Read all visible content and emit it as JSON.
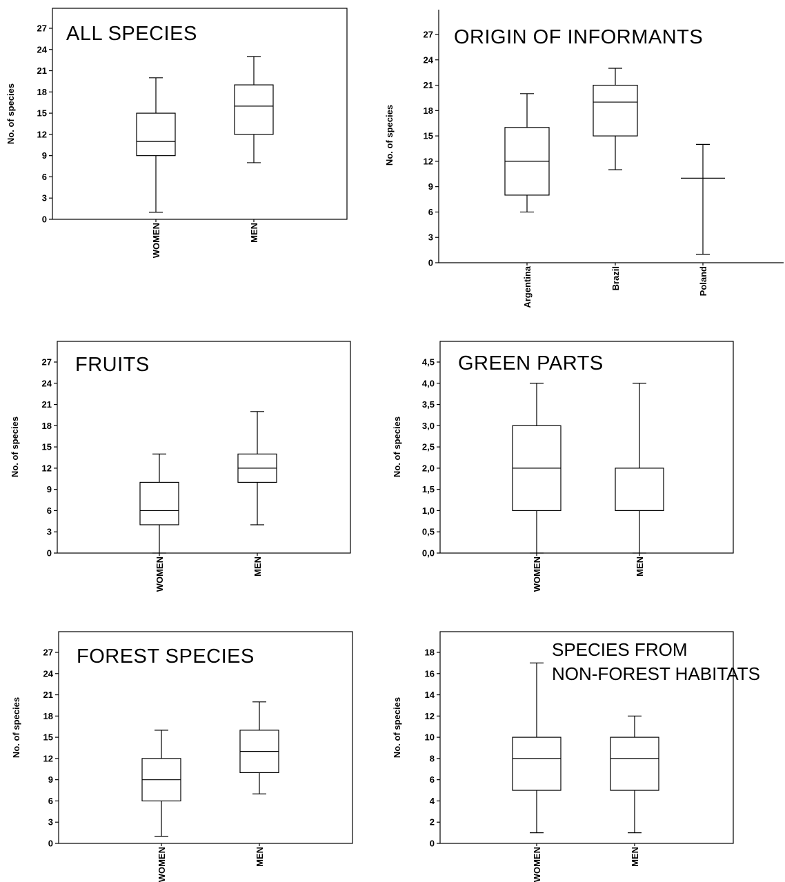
{
  "chart_data": [
    {
      "type": "box",
      "title": "ALL SPECIES",
      "ylabel": "No. of species",
      "ylim": [
        0,
        30
      ],
      "yticks": [
        "0",
        "3",
        "6",
        "9",
        "12",
        "15",
        "18",
        "21",
        "24",
        "27"
      ],
      "yticks_values": [
        0,
        3,
        6,
        9,
        12,
        15,
        18,
        21,
        24,
        27
      ],
      "categories": [
        "WOMEN",
        "MEN"
      ],
      "boxes": [
        {
          "category": "WOMEN",
          "min": 1,
          "q1": 9,
          "median": 11,
          "q3": 15,
          "max": 20
        },
        {
          "category": "MEN",
          "min": 8,
          "q1": 12,
          "median": 16,
          "q3": 19,
          "max": 23
        }
      ]
    },
    {
      "type": "box",
      "title": "ORIGIN OF INFORMANTS",
      "ylabel": "No. of species",
      "ylim": [
        0,
        30
      ],
      "yticks": [
        "0",
        "3",
        "6",
        "9",
        "12",
        "15",
        "18",
        "21",
        "24",
        "27"
      ],
      "yticks_values": [
        0,
        3,
        6,
        9,
        12,
        15,
        18,
        21,
        24,
        27
      ],
      "categories": [
        "Argentina",
        "Brazil",
        "Poland"
      ],
      "boxes": [
        {
          "category": "Argentina",
          "min": 6,
          "q1": 8,
          "median": 12,
          "q3": 16,
          "max": 20
        },
        {
          "category": "Brazil",
          "min": 11,
          "q1": 15,
          "median": 19,
          "q3": 21,
          "max": 23
        },
        {
          "category": "Poland",
          "min": 1,
          "q1": 10,
          "median": 10,
          "q3": 10,
          "max": 14
        }
      ]
    },
    {
      "type": "box",
      "title": "FRUITS",
      "ylabel": "No. of species",
      "ylim": [
        0,
        30
      ],
      "yticks": [
        "0",
        "3",
        "6",
        "9",
        "12",
        "15",
        "18",
        "21",
        "24",
        "27"
      ],
      "yticks_values": [
        0,
        3,
        6,
        9,
        12,
        15,
        18,
        21,
        24,
        27
      ],
      "categories": [
        "WOMEN",
        "MEN"
      ],
      "boxes": [
        {
          "category": "WOMEN",
          "min": 0,
          "q1": 4,
          "median": 6,
          "q3": 10,
          "max": 14
        },
        {
          "category": "MEN",
          "min": 4,
          "q1": 10,
          "median": 12,
          "q3": 14,
          "max": 20
        }
      ]
    },
    {
      "type": "box",
      "title": "GREEN PARTS",
      "ylabel": "No. of species",
      "ylim": [
        0,
        5
      ],
      "yticks": [
        "0,0",
        "0,5",
        "1,0",
        "1,5",
        "2,0",
        "2,5",
        "3,0",
        "3,5",
        "4,0",
        "4,5"
      ],
      "yticks_values": [
        0,
        0.5,
        1,
        1.5,
        2,
        2.5,
        3,
        3.5,
        4,
        4.5
      ],
      "categories": [
        "WOMEN",
        "MEN"
      ],
      "boxes": [
        {
          "category": "WOMEN",
          "min": 0,
          "q1": 1,
          "median": 2,
          "q3": 3,
          "max": 4
        },
        {
          "category": "MEN",
          "min": 0,
          "q1": 1,
          "median": 1,
          "q3": 2,
          "max": 4
        }
      ]
    },
    {
      "type": "box",
      "title": "FOREST SPECIES",
      "ylabel": "No. of species",
      "ylim": [
        0,
        30
      ],
      "yticks": [
        "0",
        "3",
        "6",
        "9",
        "12",
        "15",
        "18",
        "21",
        "24",
        "27"
      ],
      "yticks_values": [
        0,
        3,
        6,
        9,
        12,
        15,
        18,
        21,
        24,
        27
      ],
      "categories": [
        "WOMEN",
        "MEN"
      ],
      "boxes": [
        {
          "category": "WOMEN",
          "min": 1,
          "q1": 6,
          "median": 9,
          "q3": 12,
          "max": 16
        },
        {
          "category": "MEN",
          "min": 7,
          "q1": 10,
          "median": 13,
          "q3": 16,
          "max": 20
        }
      ]
    },
    {
      "type": "box",
      "title": "SPECIES FROM",
      "title_line2": "NON-FOREST HABITATS",
      "ylabel": "No. of species",
      "ylim": [
        0,
        20
      ],
      "yticks": [
        "0",
        "2",
        "4",
        "6",
        "8",
        "10",
        "12",
        "14",
        "16",
        "18"
      ],
      "yticks_values": [
        0,
        2,
        4,
        6,
        8,
        10,
        12,
        14,
        16,
        18
      ],
      "categories": [
        "WOMEN",
        "MEN"
      ],
      "boxes": [
        {
          "category": "WOMEN",
          "min": 1,
          "q1": 5,
          "median": 8,
          "q3": 10,
          "max": 17
        },
        {
          "category": "MEN",
          "min": 1,
          "q1": 5,
          "median": 8,
          "q3": 10,
          "max": 12
        }
      ]
    }
  ]
}
